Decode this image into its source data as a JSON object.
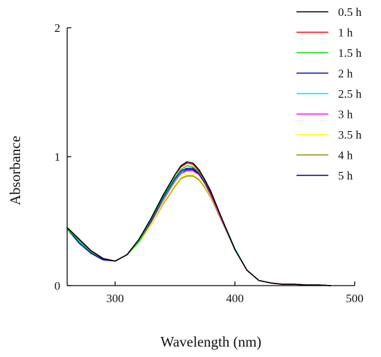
{
  "chart_data": {
    "type": "line",
    "xlabel": "Wavelength (nm)",
    "ylabel": "Absorbance",
    "xlim": [
      260,
      500
    ],
    "ylim": [
      0,
      2
    ],
    "xticks": [
      300,
      400,
      500
    ],
    "yticks": [
      0,
      1,
      2
    ],
    "legend_position": "top-right",
    "grid": false,
    "x": [
      260,
      270,
      280,
      290,
      300,
      310,
      320,
      330,
      340,
      350,
      355,
      360,
      365,
      370,
      375,
      380,
      390,
      400,
      410,
      420,
      430,
      440,
      450,
      460,
      470,
      480
    ],
    "series": [
      {
        "name": "0.5 h",
        "color": "#000000",
        "values": [
          0.45,
          0.36,
          0.27,
          0.21,
          0.19,
          0.24,
          0.36,
          0.52,
          0.7,
          0.86,
          0.93,
          0.96,
          0.95,
          0.9,
          0.82,
          0.73,
          0.5,
          0.28,
          0.12,
          0.04,
          0.02,
          0.01,
          0.01,
          0.005,
          0.005,
          0.0
        ]
      },
      {
        "name": "1 h",
        "color": "#ff0000",
        "values": [
          0.45,
          0.36,
          0.27,
          0.21,
          0.19,
          0.24,
          0.36,
          0.52,
          0.7,
          0.86,
          0.92,
          0.95,
          0.94,
          0.89,
          0.82,
          0.72,
          0.5,
          0.28,
          0.12,
          0.04,
          0.02,
          0.01,
          0.01,
          0.005,
          0.005,
          0.0
        ]
      },
      {
        "name": "1.5 h",
        "color": "#00dd00",
        "values": [
          0.44,
          0.35,
          0.26,
          0.21,
          0.19,
          0.24,
          0.35,
          0.51,
          0.69,
          0.84,
          0.9,
          0.93,
          0.92,
          0.88,
          0.81,
          0.72,
          0.5,
          0.28,
          0.12,
          0.04,
          0.02,
          0.01,
          0.01,
          0.005,
          0.005,
          0.0
        ]
      },
      {
        "name": "2 h",
        "color": "#0000cc",
        "values": [
          0.44,
          0.33,
          0.25,
          0.2,
          0.19,
          0.24,
          0.35,
          0.5,
          0.68,
          0.83,
          0.89,
          0.91,
          0.91,
          0.87,
          0.8,
          0.71,
          0.5,
          0.28,
          0.12,
          0.04,
          0.02,
          0.01,
          0.01,
          0.005,
          0.005,
          0.0
        ]
      },
      {
        "name": "2.5 h",
        "color": "#00e5e5",
        "values": [
          0.44,
          0.34,
          0.26,
          0.21,
          0.19,
          0.24,
          0.34,
          0.5,
          0.67,
          0.82,
          0.88,
          0.91,
          0.91,
          0.87,
          0.8,
          0.71,
          0.5,
          0.29,
          0.12,
          0.04,
          0.02,
          0.01,
          0.01,
          0.005,
          0.005,
          0.0
        ]
      },
      {
        "name": "3 h",
        "color": "#ff00ff",
        "values": [
          0.44,
          0.34,
          0.26,
          0.21,
          0.19,
          0.24,
          0.34,
          0.49,
          0.66,
          0.81,
          0.87,
          0.89,
          0.89,
          0.86,
          0.79,
          0.7,
          0.49,
          0.28,
          0.12,
          0.04,
          0.02,
          0.01,
          0.01,
          0.005,
          0.005,
          0.0
        ]
      },
      {
        "name": "3.5 h",
        "color": "#ffff00",
        "values": [
          0.44,
          0.35,
          0.27,
          0.21,
          0.19,
          0.24,
          0.33,
          0.47,
          0.64,
          0.78,
          0.84,
          0.86,
          0.86,
          0.83,
          0.77,
          0.69,
          0.49,
          0.28,
          0.12,
          0.04,
          0.02,
          0.01,
          0.01,
          0.005,
          0.005,
          0.0
        ]
      },
      {
        "name": "4 h",
        "color": "#8b8b00",
        "values": [
          0.44,
          0.35,
          0.27,
          0.21,
          0.19,
          0.24,
          0.33,
          0.47,
          0.63,
          0.77,
          0.83,
          0.85,
          0.85,
          0.82,
          0.76,
          0.68,
          0.48,
          0.28,
          0.12,
          0.04,
          0.02,
          0.01,
          0.01,
          0.005,
          0.005,
          0.0
        ]
      },
      {
        "name": "5 h",
        "color": "#000080",
        "values": [
          0.44,
          0.33,
          0.25,
          0.2,
          0.19,
          0.24,
          0.35,
          0.5,
          0.68,
          0.83,
          0.88,
          0.9,
          0.9,
          0.86,
          0.8,
          0.71,
          0.5,
          0.28,
          0.12,
          0.04,
          0.02,
          0.01,
          0.01,
          0.005,
          0.005,
          0.0
        ]
      }
    ]
  }
}
